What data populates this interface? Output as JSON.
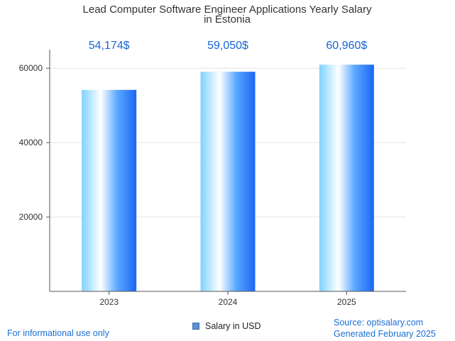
{
  "chart_data": {
    "type": "bar",
    "title_lines": [
      "Lead Computer Software Engineer Applications Yearly Salary",
      "in Estonia"
    ],
    "categories": [
      "2023",
      "2024",
      "2025"
    ],
    "series": [
      {
        "name": "Salary in USD",
        "values": [
          54174,
          59050,
          60960
        ]
      }
    ],
    "data_labels": [
      "54,174$",
      "59,050$",
      "60,960$"
    ],
    "y_ticks": [
      20000,
      40000,
      60000
    ],
    "ylim": [
      0,
      65000
    ],
    "grid": true,
    "legend": "bottom-center",
    "colors": {
      "bar_edge": "#1a66f5",
      "bar_light": "#7fd3ff",
      "label": "#1565d8"
    }
  },
  "footer": {
    "left": "For informational use only",
    "source": "Source: optisalary.com",
    "generated": "Generated February 2025"
  }
}
